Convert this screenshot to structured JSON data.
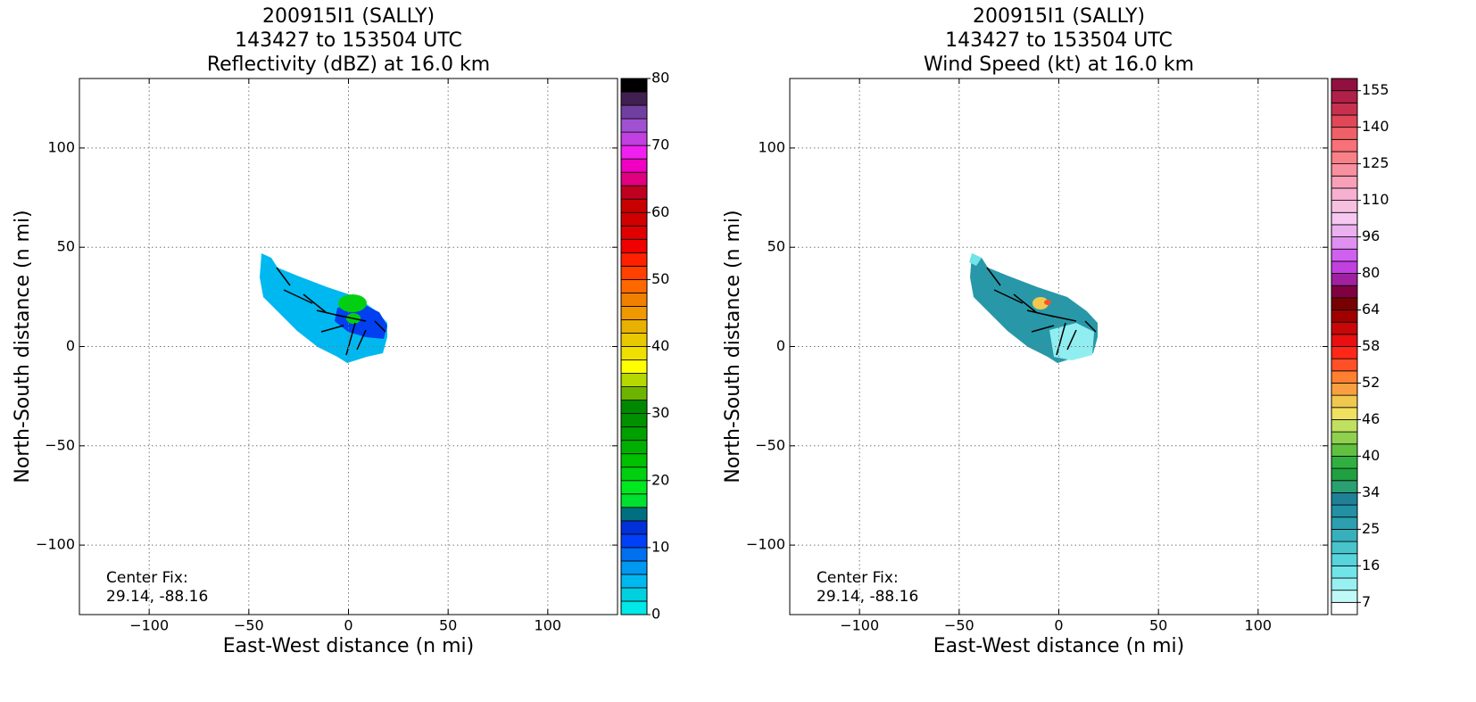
{
  "chart_data": [
    {
      "type": "radar-map",
      "title": [
        "200915I1 (SALLY)",
        "143427 to 153504 UTC",
        "Reflectivity (dBZ) at 16.0 km"
      ],
      "xlabel": "East-West distance (n mi)",
      "ylabel": "North-South distance (n mi)",
      "xlim": [
        -135,
        135
      ],
      "ylim": [
        -135,
        135
      ],
      "xticks": [
        {
          "value": -100,
          "label": "−100"
        },
        {
          "value": -50,
          "label": "−50"
        },
        0,
        50,
        100
      ],
      "yticks": [
        {
          "value": -100,
          "label": "−100"
        },
        {
          "value": -50,
          "label": "−50"
        },
        0,
        50,
        100
      ],
      "grid": true,
      "annotation": [
        "Center Fix:",
        "29.14, -88.16"
      ],
      "colorbar": {
        "lim": [
          0,
          80
        ],
        "ticks": [
          0,
          10,
          20,
          30,
          40,
          50,
          60,
          70,
          80
        ],
        "colors": [
          "#00e8e8",
          "#00d0e0",
          "#00b8f0",
          "#0098f0",
          "#0070f0",
          "#0040f8",
          "#0030d8",
          "#007080",
          "#00e030",
          "#00e820",
          "#00d010",
          "#00c000",
          "#00b000",
          "#00a000",
          "#009000",
          "#008800",
          "#6cb400",
          "#b4d800",
          "#ffff00",
          "#f0e000",
          "#e8c800",
          "#e8b000",
          "#f09800",
          "#f08000",
          "#ff6800",
          "#ff4000",
          "#ff2000",
          "#f00000",
          "#e00000",
          "#d00000",
          "#c80000",
          "#c00020",
          "#e00080",
          "#f000c0",
          "#f020f0",
          "#c040e0",
          "#a050d0",
          "#7040a0",
          "#402050",
          "#000000"
        ]
      }
    },
    {
      "type": "radar-map",
      "title": [
        "200915I1 (SALLY)",
        "143427 to 153504 UTC",
        "Wind Speed (kt) at 16.0 km"
      ],
      "xlabel": "East-West distance (n mi)",
      "ylabel": "North-South distance (n mi)",
      "xlim": [
        -135,
        135
      ],
      "ylim": [
        -135,
        135
      ],
      "xticks": [
        {
          "value": -100,
          "label": "−100"
        },
        {
          "value": -50,
          "label": "−50"
        },
        0,
        50,
        100
      ],
      "yticks": [
        {
          "value": -100,
          "label": "−100"
        },
        {
          "value": -50,
          "label": "−50"
        },
        0,
        50,
        100
      ],
      "grid": true,
      "annotation": [
        "Center Fix:",
        "29.14, -88.16"
      ],
      "colorbar": {
        "ticks": [
          7,
          16,
          25,
          34,
          40,
          46,
          52,
          58,
          64,
          80,
          96,
          110,
          125,
          140,
          155
        ],
        "colors": [
          "#ffffff",
          "#c0f8f8",
          "#98f0f0",
          "#70e4e8",
          "#58d4dc",
          "#48c4cc",
          "#38b0bc",
          "#2ca0b0",
          "#2490a4",
          "#208098",
          "#28a070",
          "#20a040",
          "#30b040",
          "#60c040",
          "#90d050",
          "#c0e060",
          "#f0e060",
          "#f0c850",
          "#f8a040",
          "#ff8030",
          "#ff5028",
          "#ff2818",
          "#e81010",
          "#c80808",
          "#a00000",
          "#780000",
          "#800040",
          "#a020a0",
          "#c040e0",
          "#d060f0",
          "#e090f0",
          "#eab0f0",
          "#f4c8f0",
          "#f8c0e0",
          "#f8b0d0",
          "#f8a0b8",
          "#f890a0",
          "#f88088",
          "#f87078",
          "#f06068",
          "#e04858",
          "#c83050",
          "#b02048",
          "#901040"
        ]
      }
    }
  ]
}
